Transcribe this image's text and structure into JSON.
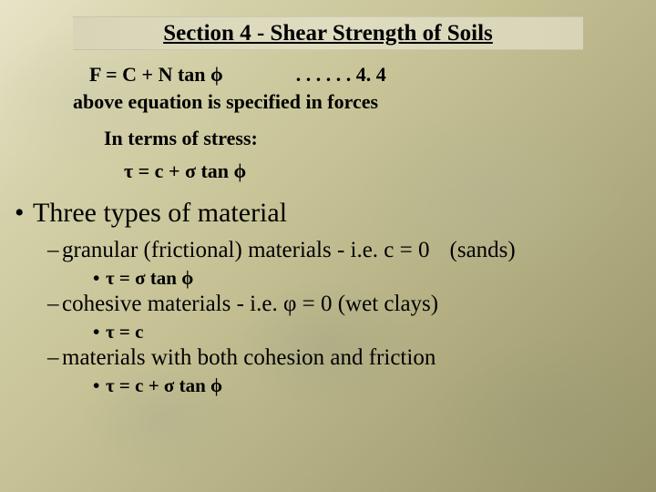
{
  "title": "Section 4 - Shear Strength of Soils",
  "eq1": {
    "formula": "F =  C  +   N tan ϕ",
    "ref": ". . . . . . 4. 4"
  },
  "caption_above": "above equation is specified in forces",
  "stress_intro": "In terms of stress:",
  "eq2": "τ =  c  +   σ tan ϕ",
  "main_bullet": "Three types of material",
  "items": [
    {
      "text": "granular (frictional) materials - i.e. c = 0",
      "paren": "(sands)",
      "formula": "τ =  σ tan ϕ"
    },
    {
      "text": "cohesive materials - i.e. φ = 0    (wet clays)",
      "paren": "",
      "formula": "τ =  c"
    },
    {
      "text": "materials with both cohesion and friction",
      "paren": "",
      "formula": "τ =  c  +   σ tan ϕ"
    }
  ]
}
